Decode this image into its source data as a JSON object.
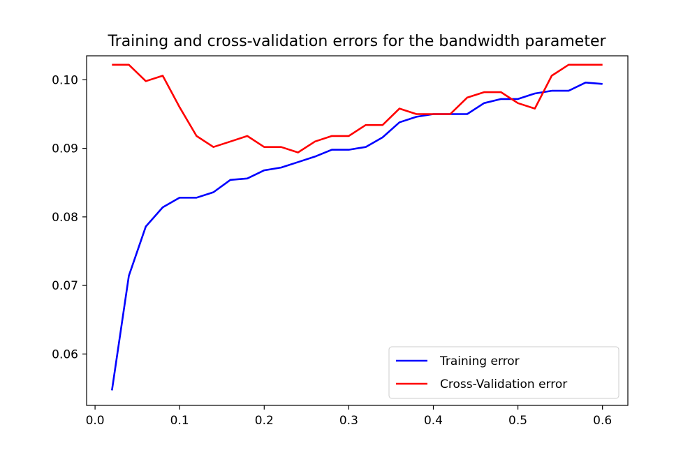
{
  "chart_data": {
    "type": "line",
    "title": "Training and cross-validation errors for the bandwidth parameter",
    "xlabel": "",
    "ylabel": "",
    "xlim": [
      -0.01,
      0.63
    ],
    "ylim": [
      0.0525,
      0.1035
    ],
    "grid": false,
    "legend_position": "lower-right",
    "x_ticks": [
      0.0,
      0.1,
      0.2,
      0.3,
      0.4,
      0.5,
      0.6
    ],
    "x_tick_labels": [
      "0.0",
      "0.1",
      "0.2",
      "0.3",
      "0.4",
      "0.5",
      "0.6"
    ],
    "y_ticks": [
      0.06,
      0.07,
      0.08,
      0.09,
      0.1
    ],
    "y_tick_labels": [
      "0.06",
      "0.07",
      "0.08",
      "0.09",
      "0.10"
    ],
    "x": [
      0.02,
      0.04,
      0.06,
      0.08,
      0.1,
      0.12,
      0.14,
      0.16,
      0.18,
      0.2,
      0.22,
      0.24,
      0.26,
      0.28,
      0.3,
      0.32,
      0.34,
      0.36,
      0.38,
      0.4,
      0.42,
      0.44,
      0.46,
      0.48,
      0.5,
      0.52,
      0.54,
      0.56,
      0.58,
      0.6
    ],
    "series": [
      {
        "name": "Training error",
        "color": "#0000ff",
        "values": [
          0.0547,
          0.0714,
          0.0786,
          0.0814,
          0.0828,
          0.0828,
          0.0836,
          0.0854,
          0.0856,
          0.0868,
          0.0872,
          0.088,
          0.0888,
          0.0898,
          0.0898,
          0.0902,
          0.0916,
          0.0938,
          0.0946,
          0.095,
          0.095,
          0.095,
          0.0966,
          0.0972,
          0.0972,
          0.098,
          0.0984,
          0.0984,
          0.0996,
          0.0994
        ]
      },
      {
        "name": "Cross-Validation error",
        "color": "#ff0000",
        "values": [
          0.1022,
          0.1022,
          0.0998,
          0.1006,
          0.096,
          0.0918,
          0.0902,
          0.091,
          0.0918,
          0.0902,
          0.0902,
          0.0894,
          0.091,
          0.0918,
          0.0918,
          0.0934,
          0.0934,
          0.0958,
          0.095,
          0.095,
          0.095,
          0.0974,
          0.0982,
          0.0982,
          0.0966,
          0.0958,
          0.1006,
          0.1022,
          0.1022,
          0.1022
        ]
      }
    ]
  }
}
